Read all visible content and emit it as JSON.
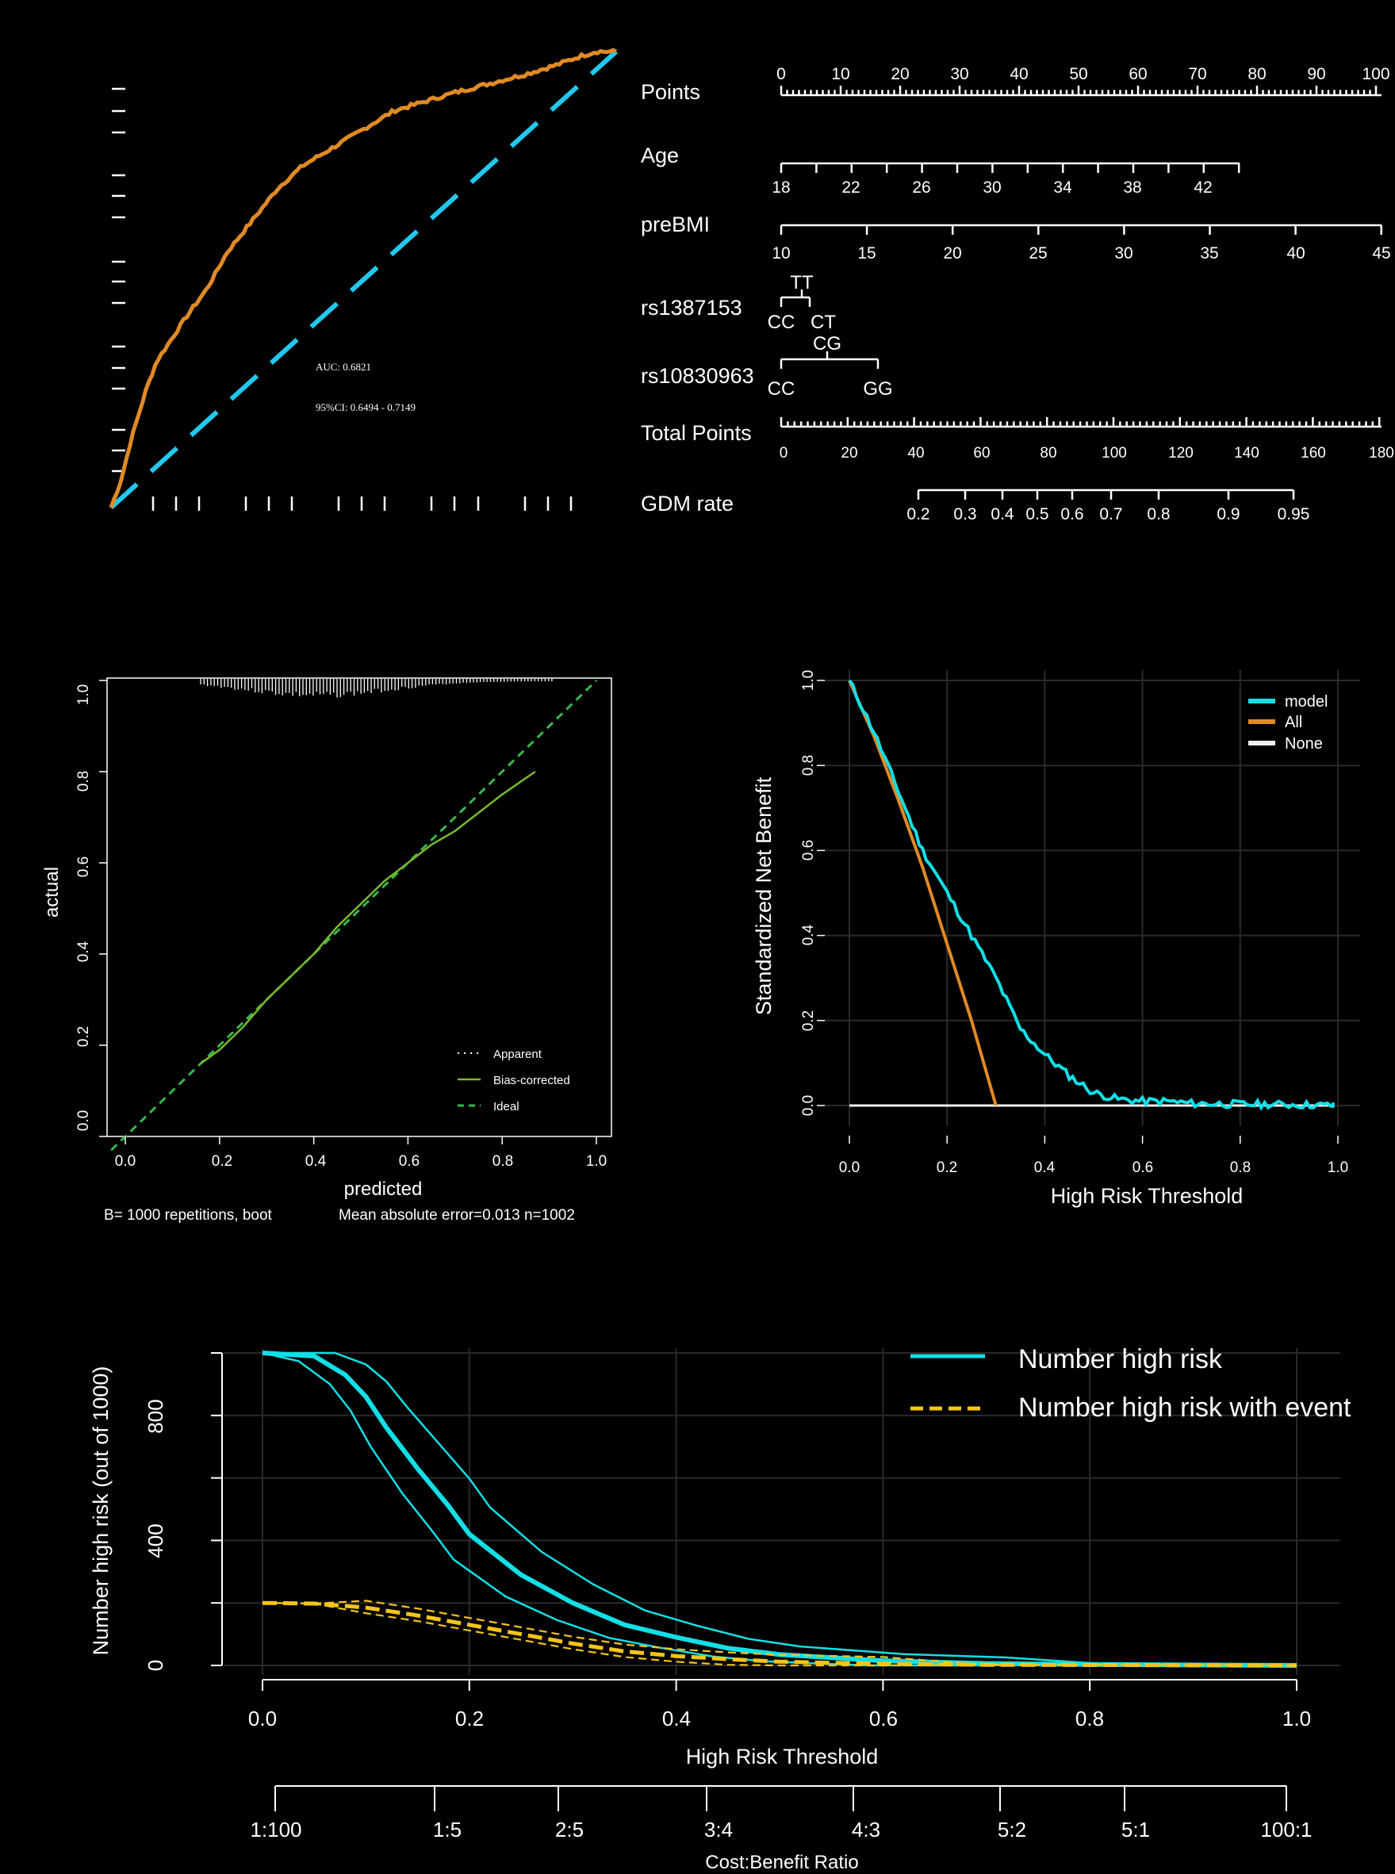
{
  "chart_data": [
    {
      "panel": "roc",
      "type": "line",
      "auc_label": "AUC: 0.6821",
      "ci_label": "95%CI: 0.6494 - 0.7149",
      "xlim": [
        0,
        1
      ],
      "ylim": [
        0,
        1
      ],
      "series": [
        {
          "name": "ROC",
          "color": "#e08a25",
          "x": [
            0,
            0.02,
            0.04,
            0.07,
            0.09,
            0.12,
            0.15,
            0.19,
            0.23,
            0.28,
            0.33,
            0.38,
            0.44,
            0.5,
            0.56,
            0.62,
            0.68,
            0.75,
            0.82,
            0.88,
            0.93,
            0.96,
            1.0
          ],
          "y": [
            0,
            0.06,
            0.15,
            0.26,
            0.32,
            0.37,
            0.42,
            0.48,
            0.56,
            0.63,
            0.7,
            0.75,
            0.79,
            0.83,
            0.87,
            0.89,
            0.91,
            0.93,
            0.95,
            0.97,
            0.99,
            1.0,
            1.0
          ]
        },
        {
          "name": "Reference",
          "color": "#22c8ee",
          "x": [
            0,
            1
          ],
          "y": [
            0,
            1
          ]
        }
      ]
    },
    {
      "panel": "nomogram",
      "type": "table",
      "rows": [
        {
          "label": "Points",
          "ticks": [
            "0",
            "10",
            "20",
            "30",
            "40",
            "50",
            "60",
            "70",
            "80",
            "90",
            "100"
          ]
        },
        {
          "label": "Age",
          "ticks": [
            "18",
            "22",
            "26",
            "30",
            "34",
            "38",
            "42"
          ]
        },
        {
          "label": "preBMI",
          "ticks": [
            "10",
            "15",
            "20",
            "25",
            "30",
            "35",
            "40",
            "45"
          ]
        },
        {
          "label": "rs1387153",
          "ticks": [
            "CC",
            "TT",
            "CT"
          ]
        },
        {
          "label": "rs10830963",
          "ticks": [
            "CC",
            "CG",
            "GG"
          ]
        },
        {
          "label": "Total Points",
          "ticks": [
            "0",
            "20",
            "40",
            "60",
            "80",
            "100",
            "120",
            "140",
            "160",
            "180"
          ]
        },
        {
          "label": "GDM rate",
          "ticks": [
            "0.2",
            "0.3",
            "0.4",
            "0.5",
            "0.6",
            "0.7",
            "0.8",
            "0.9",
            "0.95"
          ]
        }
      ]
    },
    {
      "panel": "calibration",
      "type": "line",
      "xlabel": "predicted",
      "ylabel": "actual",
      "xlim": [
        0,
        1
      ],
      "ylim": [
        0,
        1
      ],
      "xticks": [
        "0.0",
        "0.2",
        "0.4",
        "0.6",
        "0.8",
        "1.0"
      ],
      "yticks": [
        "0.0",
        "0.2",
        "0.4",
        "0.6",
        "0.8",
        "1.0"
      ],
      "legend": [
        "Apparent",
        "Bias-corrected",
        "Ideal"
      ],
      "footnote_left": "B= 1000 repetitions, boot",
      "footnote_right": "Mean absolute error=0.013 n=1002",
      "series": [
        {
          "name": "Bias-corrected",
          "color": "#7ab82a",
          "x": [
            0.16,
            0.2,
            0.25,
            0.3,
            0.35,
            0.4,
            0.45,
            0.5,
            0.55,
            0.6,
            0.65,
            0.7,
            0.75,
            0.8,
            0.87
          ],
          "y": [
            0.16,
            0.19,
            0.24,
            0.3,
            0.35,
            0.4,
            0.46,
            0.51,
            0.56,
            0.6,
            0.64,
            0.67,
            0.71,
            0.75,
            0.8
          ]
        },
        {
          "name": "Ideal",
          "color": "#35b84d",
          "x": [
            0,
            1
          ],
          "y": [
            0,
            1
          ]
        }
      ]
    },
    {
      "panel": "dca",
      "type": "line",
      "xlabel": "High Risk Threshold",
      "ylabel": "Standardized Net Benefit",
      "xlim": [
        0,
        1
      ],
      "ylim": [
        0,
        1
      ],
      "xticks": [
        "0.0",
        "0.2",
        "0.4",
        "0.6",
        "0.8",
        "1.0"
      ],
      "yticks": [
        "0.0",
        "0.2",
        "0.4",
        "0.6",
        "0.8",
        "1.0"
      ],
      "legend": [
        "model",
        "All",
        "None"
      ],
      "series": [
        {
          "name": "model",
          "color": "#12dfe6",
          "x": [
            0,
            0.05,
            0.1,
            0.15,
            0.2,
            0.25,
            0.3,
            0.35,
            0.4,
            0.45,
            0.5,
            0.55,
            0.6,
            0.65,
            0.7,
            0.8,
            0.9,
            1.0
          ],
          "y": [
            1.0,
            0.88,
            0.74,
            0.6,
            0.5,
            0.4,
            0.3,
            0.18,
            0.12,
            0.07,
            0.03,
            0.015,
            0.01,
            0.01,
            0.005,
            0.003,
            0.002,
            0
          ]
        },
        {
          "name": "All",
          "color": "#e08a25",
          "x": [
            0,
            0.05,
            0.1,
            0.15,
            0.2,
            0.25,
            0.3
          ],
          "y": [
            1.0,
            0.87,
            0.72,
            0.56,
            0.38,
            0.2,
            0.0
          ]
        },
        {
          "name": "None",
          "color": "#eeeeee",
          "x": [
            0,
            1
          ],
          "y": [
            0,
            0
          ]
        }
      ]
    },
    {
      "panel": "clinical_impact",
      "type": "line",
      "xlabel": "High Risk Threshold",
      "ylabel": "Number high risk (out of 1000)",
      "xlim": [
        0,
        1
      ],
      "ylim": [
        0,
        1000
      ],
      "xticks": [
        "0.0",
        "0.2",
        "0.4",
        "0.6",
        "0.8",
        "1.0"
      ],
      "yticks": [
        "0",
        "400",
        "800"
      ],
      "cost_benefit_label": "Cost:Benefit Ratio",
      "cost_benefit_ticks": [
        "1:100",
        "1:5",
        "2:5",
        "3:4",
        "4:3",
        "5:2",
        "5:1",
        "100:1"
      ],
      "legend": [
        "Number high risk",
        "Number high risk with event"
      ],
      "series": [
        {
          "name": "Number high risk",
          "color": "#12dfe6",
          "x": [
            0,
            0.05,
            0.08,
            0.1,
            0.12,
            0.15,
            0.18,
            0.2,
            0.25,
            0.3,
            0.35,
            0.4,
            0.45,
            0.5,
            0.6,
            0.7,
            0.8,
            1.0
          ],
          "y": [
            1000,
            990,
            930,
            860,
            760,
            630,
            510,
            420,
            290,
            200,
            130,
            90,
            55,
            35,
            15,
            6,
            3,
            0
          ]
        },
        {
          "name": "Number high risk with event",
          "color": "#f5c518",
          "x": [
            0,
            0.05,
            0.1,
            0.15,
            0.2,
            0.25,
            0.3,
            0.35,
            0.4,
            0.45,
            0.5,
            0.6,
            0.7,
            1.0
          ],
          "y": [
            200,
            198,
            185,
            160,
            130,
            100,
            70,
            45,
            30,
            20,
            12,
            5,
            2,
            0
          ]
        }
      ]
    }
  ],
  "colors": {
    "orange": "#e08a25",
    "cyan": "#22c8ee",
    "aqua": "#12dfe6",
    "green": "#35b84d",
    "olive": "#7ab82a",
    "yellow": "#f5c518"
  }
}
